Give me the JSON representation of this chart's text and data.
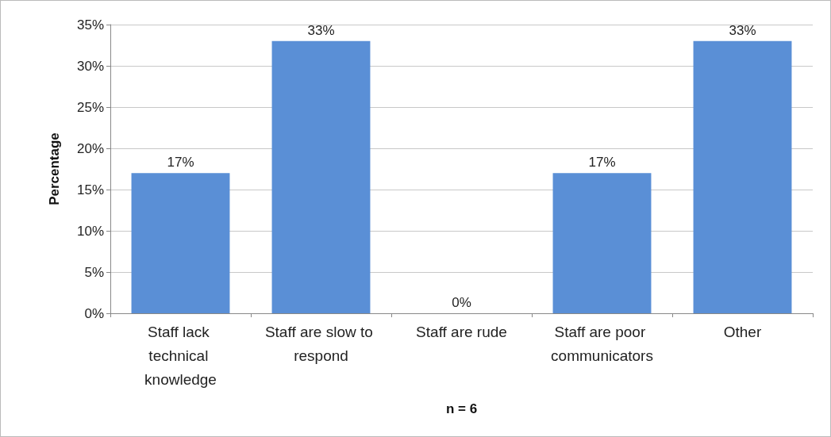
{
  "chart_data": {
    "type": "bar",
    "xlabel": "n = 6",
    "ylabel": "Percentage",
    "categories": [
      "Staff lack technical knowledge",
      "Staff are slow to respond",
      "Staff are rude",
      "Staff are poor communicators",
      "Other"
    ],
    "values": [
      17,
      33,
      0,
      17,
      33
    ],
    "value_labels": [
      "17%",
      "33%",
      "0%",
      "17%",
      "33%"
    ],
    "color": "#5a8fd6",
    "ylim": [
      0,
      35
    ],
    "yticks": [
      {
        "value": 0,
        "label": "0%"
      },
      {
        "value": 5,
        "label": "5%"
      },
      {
        "value": 10,
        "label": "10%"
      },
      {
        "value": 15,
        "label": "15%"
      },
      {
        "value": 20,
        "label": "20%"
      },
      {
        "value": 25,
        "label": "25%"
      },
      {
        "value": 30,
        "label": "30%"
      },
      {
        "value": 35,
        "label": "35%"
      }
    ],
    "grid": "y"
  }
}
